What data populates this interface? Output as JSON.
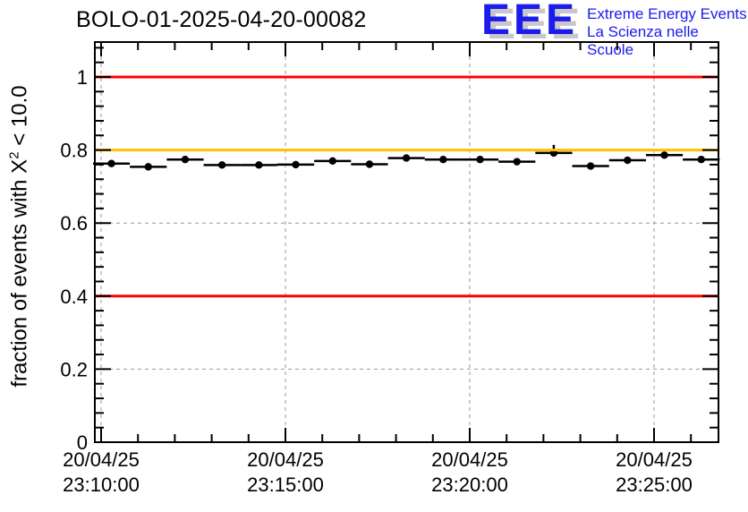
{
  "logo": {
    "acronym": "EEE",
    "line1": "Extreme Energy Events",
    "line2": "La Scienza nelle Scuole"
  },
  "colors": {
    "logo_blue": "#1b1bee",
    "logo_shadow_gray": "#c8c8c8",
    "threshold_red": "#ff0000",
    "warning_orange": "#ffc000",
    "grid_gray": "#999999",
    "marker_black": "#000000"
  },
  "chart_data": {
    "type": "scatter",
    "title": "BOLO-01-2025-04-20-00082",
    "ylabel": "fraction of events with X² < 10.0",
    "ylabel_parts": {
      "prefix": "fraction of events with X",
      "sup": "2",
      "suffix": " < 10.0"
    },
    "xlabel": "",
    "ylim": [
      0,
      1.096
    ],
    "xlim_minutes_after_23_10": [
      -0.17,
      16.75
    ],
    "grid": true,
    "legend": "none",
    "y_ticks": [
      {
        "v": 0,
        "label": "0"
      },
      {
        "v": 0.2,
        "label": "0.2"
      },
      {
        "v": 0.4,
        "label": "0.4"
      },
      {
        "v": 0.6,
        "label": "0.6"
      },
      {
        "v": 0.8,
        "label": "0.8"
      },
      {
        "v": 1,
        "label": "1"
      }
    ],
    "x_ticks": [
      {
        "m": 0,
        "line1": "20/04/25",
        "line2": "23:10:00"
      },
      {
        "m": 5,
        "line1": "20/04/25",
        "line2": "23:15:00"
      },
      {
        "m": 10,
        "line1": "20/04/25",
        "line2": "23:20:00"
      },
      {
        "m": 15,
        "line1": "20/04/25",
        "line2": "23:25:00"
      }
    ],
    "minor_tick_step_minutes": 1,
    "minor_tick_step_y": 0.04,
    "reference_lines": [
      {
        "value": 1.0,
        "color": "#ff0000"
      },
      {
        "value": 0.8,
        "color": "#ffc000"
      },
      {
        "value": 0.4,
        "color": "#ff0000"
      }
    ],
    "series": [
      {
        "name": "fraction of events with X2 < 10.0 per 1-min bin",
        "marker": "filled-black-circle",
        "xerr_minutes": 0.5,
        "points": [
          {
            "time": "23:10:17",
            "m": 0.28,
            "value": 0.763
          },
          {
            "time": "23:11:17",
            "m": 1.28,
            "value": 0.754
          },
          {
            "time": "23:12:17",
            "m": 2.28,
            "value": 0.774
          },
          {
            "time": "23:13:17",
            "m": 3.28,
            "value": 0.759
          },
          {
            "time": "23:14:17",
            "m": 4.28,
            "value": 0.759
          },
          {
            "time": "23:15:17",
            "m": 5.28,
            "value": 0.76
          },
          {
            "time": "23:16:17",
            "m": 6.28,
            "value": 0.77
          },
          {
            "time": "23:17:17",
            "m": 7.28,
            "value": 0.761
          },
          {
            "time": "23:18:17",
            "m": 8.28,
            "value": 0.778
          },
          {
            "time": "23:19:17",
            "m": 9.28,
            "value": 0.774
          },
          {
            "time": "23:20:17",
            "m": 10.28,
            "value": 0.774
          },
          {
            "time": "23:21:17",
            "m": 11.28,
            "value": 0.768
          },
          {
            "time": "23:22:17",
            "m": 12.28,
            "value": 0.792,
            "yerr_up": 0.022
          },
          {
            "time": "23:23:17",
            "m": 13.28,
            "value": 0.756
          },
          {
            "time": "23:24:17",
            "m": 14.28,
            "value": 0.772
          },
          {
            "time": "23:25:17",
            "m": 15.28,
            "value": 0.786
          },
          {
            "time": "23:26:17",
            "m": 16.28,
            "value": 0.774
          }
        ]
      }
    ]
  }
}
